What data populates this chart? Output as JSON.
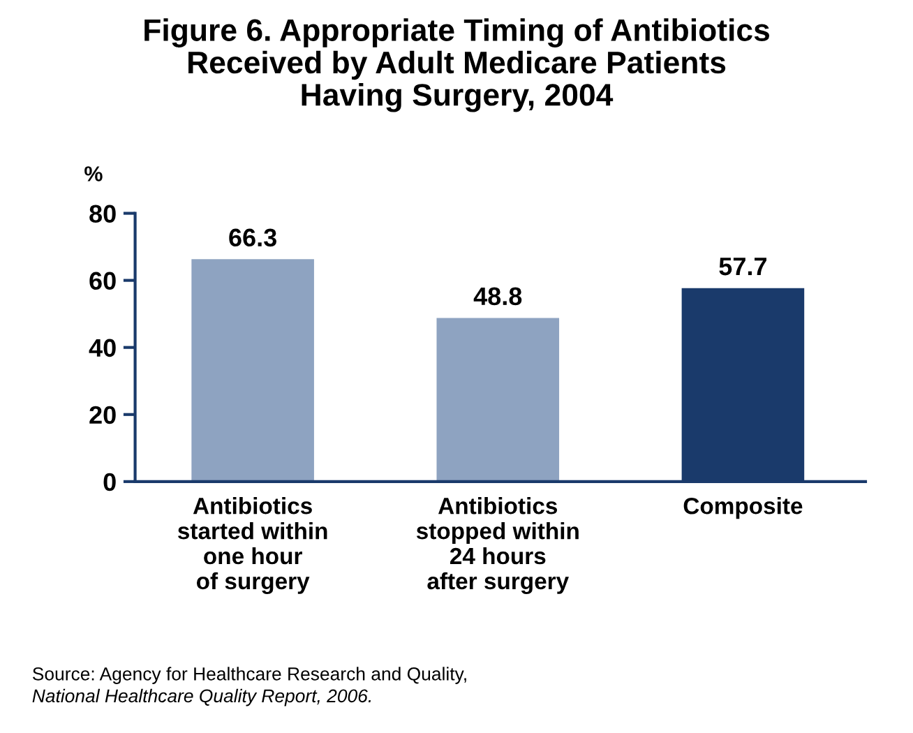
{
  "chart_data": {
    "type": "bar",
    "title": "Figure 6. Appropriate Timing of Antibiotics\nReceived by Adult Medicare Patients\nHaving Surgery, 2004",
    "ylabel": "%",
    "categories": [
      "Antibiotics\nstarted within\none hour\nof surgery",
      "Antibiotics\nstopped within\n24 hours\nafter surgery",
      "Composite"
    ],
    "values": [
      66.3,
      48.8,
      57.7
    ],
    "colors": [
      "#8ea3c1",
      "#8ea3c1",
      "#1a3a6b"
    ],
    "ylim": [
      0,
      80
    ],
    "yticks": [
      0,
      20,
      40,
      60,
      80
    ],
    "data_labels": true,
    "grid": false,
    "legend": false,
    "annotations": [
      "Source: Agency for Healthcare Research and Quality,",
      "National Healthcare Quality Report, 2006."
    ]
  }
}
